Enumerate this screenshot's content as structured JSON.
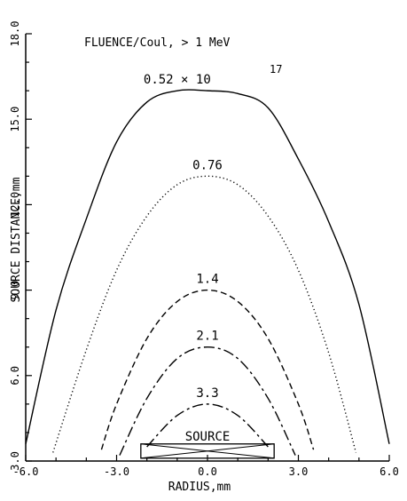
{
  "chart_data": {
    "type": "line",
    "title": "FLUENCE/Coul, > 1 MeV",
    "xlabel": "RADIUS,mm",
    "ylabel": "SOURCE DISTANCE,mm",
    "xlim": [
      -6.0,
      6.0
    ],
    "ylim": [
      3.0,
      18.0
    ],
    "xticks": [
      "-6.0",
      "-3.0",
      "0.0",
      "3.0",
      "6.0"
    ],
    "yticks": [
      "3.0",
      "6.0",
      "9.0",
      "12.0",
      "15.0",
      "18.0"
    ],
    "grid": false,
    "exponent_label": "17",
    "series": [
      {
        "name": "0.52 × 10^17",
        "label": "0.52 × 10",
        "style": "solid",
        "color": "#000000",
        "x": [
          -6.0,
          -5.0,
          -4.0,
          -3.0,
          -2.0,
          -1.0,
          0.0,
          1.0,
          2.0,
          3.0,
          4.0,
          5.0,
          6.0
        ],
        "y": [
          3.6,
          8.3,
          11.5,
          14.2,
          15.6,
          16.0,
          16.0,
          15.9,
          15.4,
          13.6,
          11.4,
          8.5,
          3.6
        ]
      },
      {
        "name": "0.76",
        "label": "0.76",
        "style": "dotted",
        "color": "#000000",
        "x": [
          -5.1,
          -4.0,
          -3.0,
          -2.0,
          -1.0,
          0.0,
          1.0,
          2.0,
          3.0,
          4.0,
          4.9
        ],
        "y": [
          3.3,
          6.9,
          9.7,
          11.6,
          12.7,
          13.0,
          12.7,
          11.6,
          9.7,
          6.8,
          3.3
        ]
      },
      {
        "name": "1.4",
        "label": "1.4",
        "style": "dashed",
        "color": "#000000",
        "x": [
          -3.5,
          -3.0,
          -2.0,
          -1.0,
          0.0,
          1.0,
          2.0,
          3.0,
          3.5
        ],
        "y": [
          3.4,
          5.0,
          7.3,
          8.6,
          9.0,
          8.6,
          7.3,
          5.0,
          3.4
        ]
      },
      {
        "name": "2.1",
        "label": "2.1",
        "style": "dashdot",
        "color": "#000000",
        "x": [
          -2.9,
          -2.0,
          -1.0,
          0.0,
          1.0,
          2.0,
          2.9
        ],
        "y": [
          3.2,
          5.2,
          6.6,
          7.0,
          6.6,
          5.2,
          3.2
        ]
      },
      {
        "name": "3.3",
        "label": "3.3",
        "style": "dashdot",
        "color": "#000000",
        "x": [
          -2.0,
          -1.0,
          0.0,
          1.0,
          2.0
        ],
        "y": [
          3.5,
          4.6,
          5.0,
          4.6,
          3.5
        ]
      }
    ],
    "annotations": [
      {
        "text": "SOURCE",
        "shape": "rectangle with X",
        "x_range": [
          -2.2,
          2.2
        ],
        "y_range": [
          3.1,
          3.6
        ]
      }
    ]
  }
}
